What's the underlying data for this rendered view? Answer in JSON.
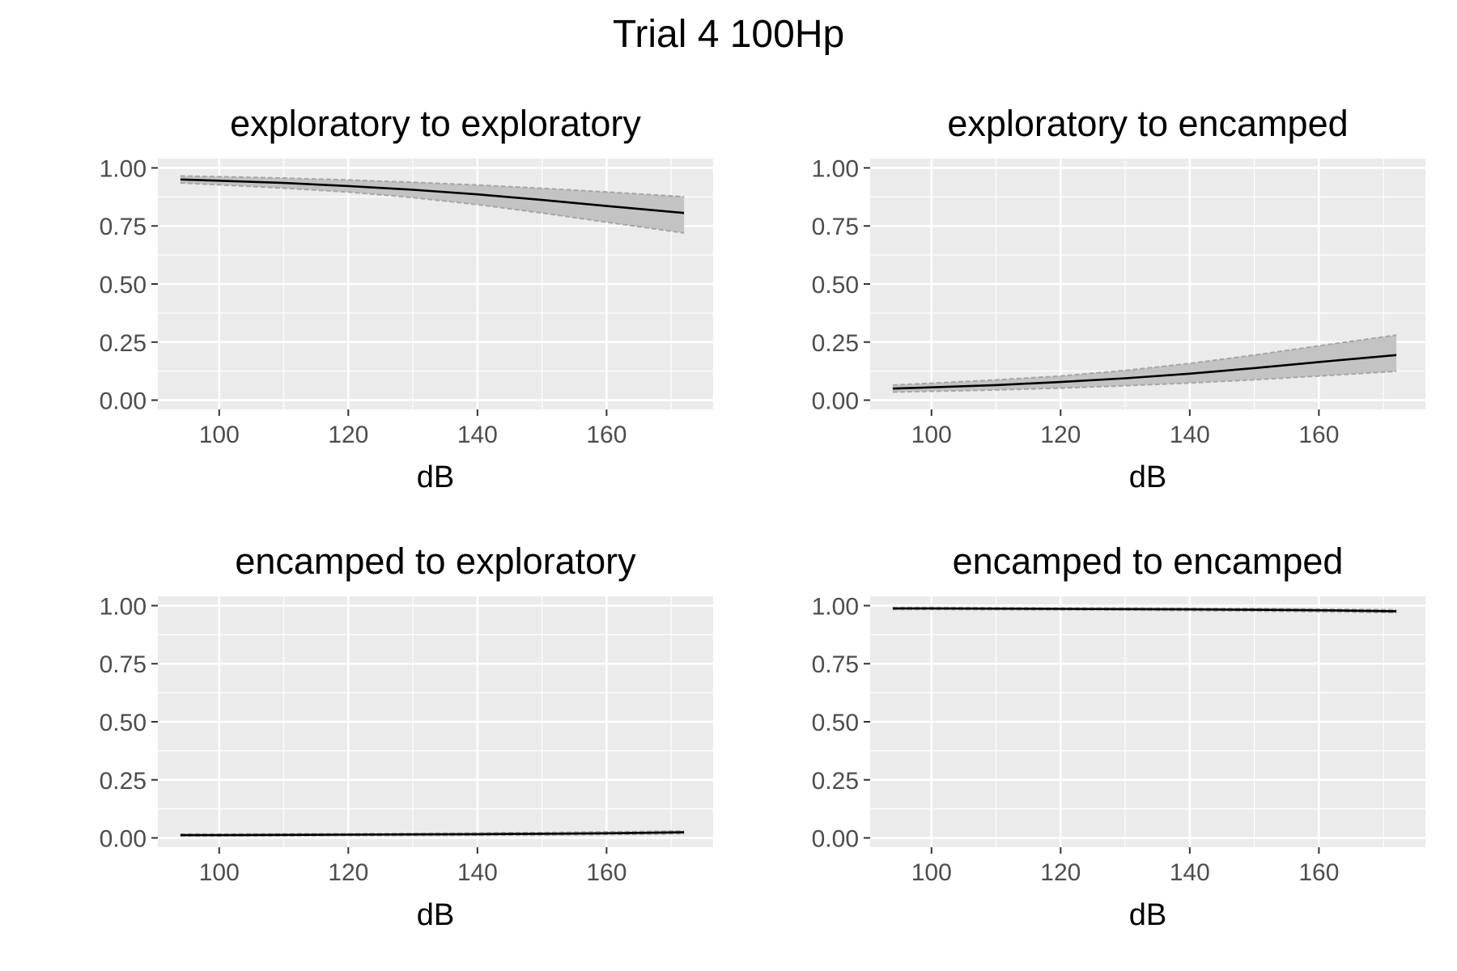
{
  "title": "Trial 4 100Hp",
  "chart_data": [
    {
      "type": "line",
      "title": "exploratory to exploratory",
      "xlabel": "dB",
      "ylabel": "",
      "xlim": [
        90.5,
        176.5
      ],
      "ylim": [
        -0.04,
        1.04
      ],
      "xticks": [
        100,
        120,
        140,
        160
      ],
      "yticks": [
        0.0,
        0.25,
        0.5,
        0.75,
        1.0
      ],
      "ytick_labels": [
        "0.00",
        "0.25",
        "0.50",
        "0.75",
        "1.00"
      ],
      "series": [
        {
          "x": [
            94,
            100,
            110,
            120,
            130,
            140,
            150,
            160,
            172
          ],
          "y": [
            0.95,
            0.945,
            0.935,
            0.922,
            0.906,
            0.886,
            0.862,
            0.836,
            0.806
          ],
          "lower": [
            0.935,
            0.927,
            0.913,
            0.896,
            0.872,
            0.842,
            0.806,
            0.766,
            0.72
          ],
          "upper": [
            0.965,
            0.962,
            0.956,
            0.948,
            0.938,
            0.926,
            0.912,
            0.896,
            0.876
          ]
        }
      ]
    },
    {
      "type": "line",
      "title": "exploratory to encamped",
      "xlabel": "dB",
      "ylabel": "",
      "xlim": [
        90.5,
        176.5
      ],
      "ylim": [
        -0.04,
        1.04
      ],
      "xticks": [
        100,
        120,
        140,
        160
      ],
      "yticks": [
        0.0,
        0.25,
        0.5,
        0.75,
        1.0
      ],
      "ytick_labels": [
        "0.00",
        "0.25",
        "0.50",
        "0.75",
        "1.00"
      ],
      "series": [
        {
          "x": [
            94,
            100,
            110,
            120,
            130,
            140,
            150,
            160,
            172
          ],
          "y": [
            0.05,
            0.055,
            0.065,
            0.078,
            0.094,
            0.114,
            0.138,
            0.164,
            0.194
          ],
          "lower": [
            0.035,
            0.038,
            0.044,
            0.052,
            0.062,
            0.074,
            0.088,
            0.104,
            0.124
          ],
          "upper": [
            0.065,
            0.073,
            0.087,
            0.104,
            0.128,
            0.158,
            0.194,
            0.234,
            0.28
          ]
        }
      ]
    },
    {
      "type": "line",
      "title": "encamped to exploratory",
      "xlabel": "dB",
      "ylabel": "",
      "xlim": [
        90.5,
        176.5
      ],
      "ylim": [
        -0.04,
        1.04
      ],
      "xticks": [
        100,
        120,
        140,
        160
      ],
      "yticks": [
        0.0,
        0.25,
        0.5,
        0.75,
        1.0
      ],
      "ytick_labels": [
        "0.00",
        "0.25",
        "0.50",
        "0.75",
        "1.00"
      ],
      "series": [
        {
          "x": [
            94,
            100,
            110,
            120,
            130,
            140,
            150,
            160,
            172
          ],
          "y": [
            0.012,
            0.012,
            0.013,
            0.014,
            0.015,
            0.016,
            0.018,
            0.02,
            0.024
          ],
          "lower": [
            0.008,
            0.008,
            0.009,
            0.01,
            0.011,
            0.012,
            0.013,
            0.015,
            0.018
          ],
          "upper": [
            0.016,
            0.016,
            0.017,
            0.018,
            0.019,
            0.021,
            0.023,
            0.026,
            0.03
          ]
        }
      ]
    },
    {
      "type": "line",
      "title": "encamped to encamped",
      "xlabel": "dB",
      "ylabel": "",
      "xlim": [
        90.5,
        176.5
      ],
      "ylim": [
        -0.04,
        1.04
      ],
      "xticks": [
        100,
        120,
        140,
        160
      ],
      "yticks": [
        0.0,
        0.25,
        0.5,
        0.75,
        1.0
      ],
      "ytick_labels": [
        "0.00",
        "0.25",
        "0.50",
        "0.75",
        "1.00"
      ],
      "series": [
        {
          "x": [
            94,
            100,
            110,
            120,
            130,
            140,
            150,
            160,
            172
          ],
          "y": [
            0.988,
            0.988,
            0.987,
            0.986,
            0.985,
            0.984,
            0.982,
            0.98,
            0.976
          ],
          "lower": [
            0.984,
            0.984,
            0.983,
            0.982,
            0.981,
            0.979,
            0.977,
            0.974,
            0.97
          ],
          "upper": [
            0.992,
            0.992,
            0.991,
            0.99,
            0.989,
            0.988,
            0.987,
            0.985,
            0.982
          ]
        }
      ]
    }
  ]
}
